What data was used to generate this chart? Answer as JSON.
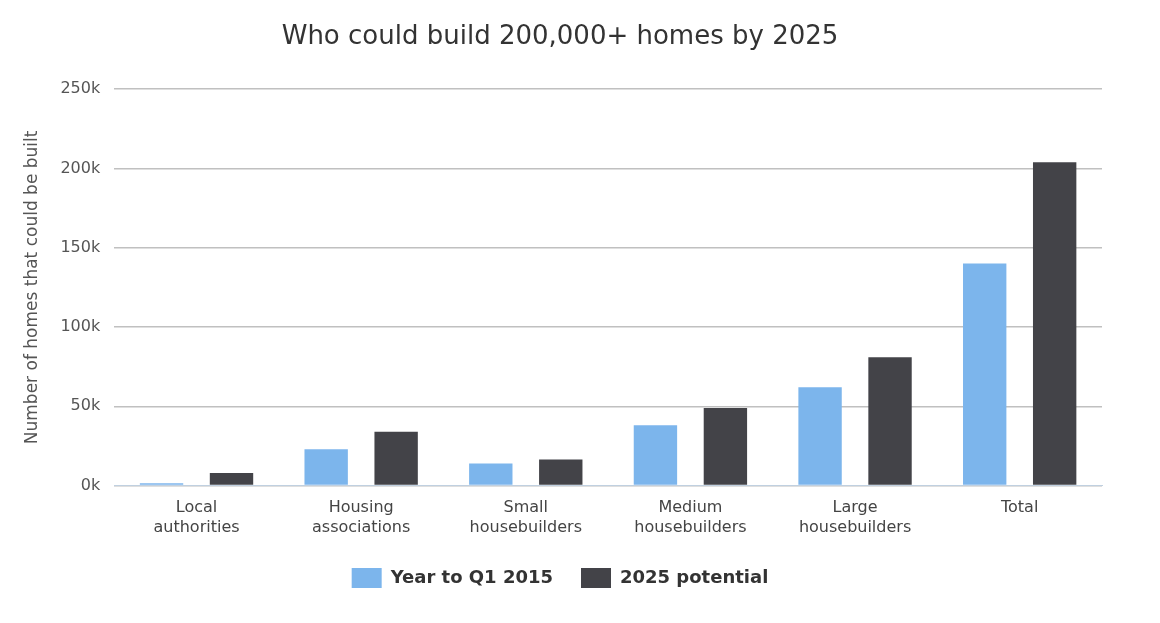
{
  "chart_data": {
    "type": "bar",
    "title": "Who could build 200,000+ homes by 2025",
    "ylabel": "Number of homes that could be built",
    "categories": [
      "Local authorities",
      "Housing associations",
      "Small housebuilders",
      "Medium housebuilders",
      "Large housebuilders",
      "Total"
    ],
    "series": [
      {
        "name": "Year to Q1 2015",
        "color": "#7cb5ec",
        "values": [
          1500,
          23000,
          14000,
          38000,
          62000,
          140000
        ]
      },
      {
        "name": "2025 potential",
        "color": "#434348",
        "values": [
          8000,
          34000,
          16500,
          49000,
          81000,
          204000
        ]
      }
    ],
    "ylim": [
      0,
      250000
    ],
    "yticks": [
      {
        "value": 0,
        "label": "0k"
      },
      {
        "value": 50000,
        "label": "50k"
      },
      {
        "value": 100000,
        "label": "100k"
      },
      {
        "value": 150000,
        "label": "150k"
      },
      {
        "value": 200000,
        "label": "200k"
      },
      {
        "value": 250000,
        "label": "250k"
      }
    ],
    "grid": "y",
    "legend": "bottom"
  }
}
